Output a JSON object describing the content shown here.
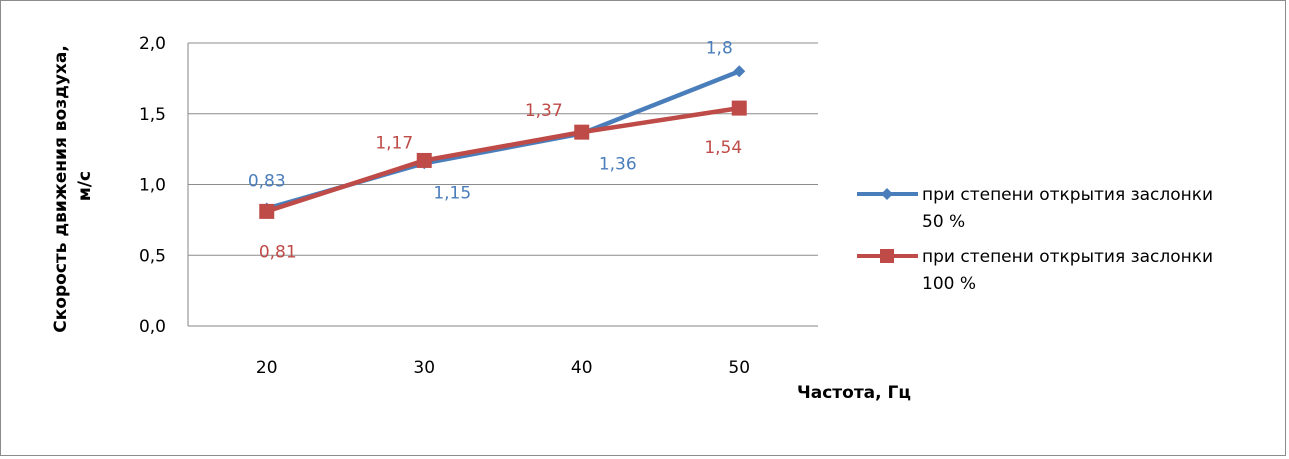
{
  "chart_data": {
    "type": "line",
    "title": "",
    "xlabel": "Частота, Гц",
    "ylabel_line1": "Скорость движения воздуха,",
    "ylabel_line2": "м/с",
    "categories": [
      "20",
      "30",
      "40",
      "50"
    ],
    "y_ticks": [
      "0,0",
      "0,5",
      "1,0",
      "1,5",
      "2,0"
    ],
    "ylim": [
      0,
      2
    ],
    "grid": true,
    "legend_position": "right",
    "series": [
      {
        "name_line1": "при степени открытия заслонки",
        "name_line2": "50 %",
        "color": "#4a7ebb",
        "marker": "diamond",
        "values": [
          0.83,
          1.15,
          1.36,
          1.8
        ],
        "labels": [
          "0,83",
          "1,15",
          "1,36",
          "1,8"
        ]
      },
      {
        "name_line1": "при степени открытия заслонки",
        "name_line2": "100 %",
        "color": "#be4b48",
        "marker": "square",
        "values": [
          0.81,
          1.17,
          1.37,
          1.54
        ],
        "labels": [
          "0,81",
          "1,17",
          "1,37",
          "1,54"
        ]
      }
    ]
  }
}
